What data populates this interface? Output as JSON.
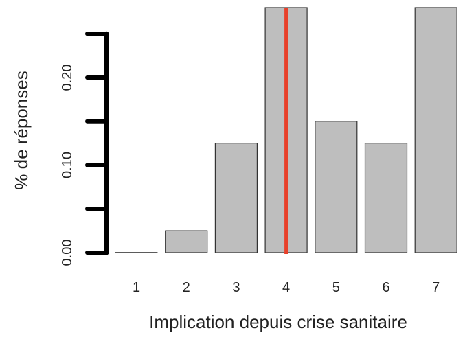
{
  "chart_data": {
    "type": "bar",
    "title": "",
    "xlabel": "Implication depuis crise sanitaire",
    "ylabel": "% de réponses",
    "categories": [
      "1",
      "2",
      "3",
      "4",
      "5",
      "6",
      "7"
    ],
    "values": [
      0.0,
      0.025,
      0.125,
      0.28,
      0.15,
      0.125,
      0.28
    ],
    "ylim": [
      0,
      0.28
    ],
    "y_ticks": [
      0.0,
      0.05,
      0.1,
      0.15,
      0.2,
      0.25
    ],
    "y_tick_labels": [
      "0.00",
      "",
      "0.10",
      "",
      "0.20",
      ""
    ],
    "marker_line": {
      "x_category": "4"
    },
    "grid": false,
    "legend": "none",
    "colors": {
      "bar_fill": "#bebebe",
      "bar_stroke": "#333333",
      "axis": "#000000",
      "marker_line": "#e8402a"
    }
  }
}
